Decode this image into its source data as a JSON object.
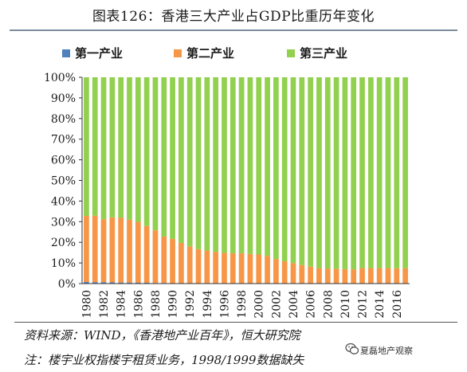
{
  "header": {
    "title": "图表126：香港三大产业占GDP比重历年变化"
  },
  "chart_data": {
    "type": "bar",
    "stacked": true,
    "percent_scale": true,
    "categories": [
      "1980",
      "1981",
      "1982",
      "1983",
      "1984",
      "1985",
      "1986",
      "1987",
      "1988",
      "1989",
      "1990",
      "1991",
      "1992",
      "1993",
      "1994",
      "1995",
      "1996",
      "1997",
      "1998",
      "1999",
      "2000",
      "2001",
      "2002",
      "2003",
      "2004",
      "2005",
      "2006",
      "2007",
      "2008",
      "2009",
      "2010",
      "2011",
      "2012",
      "2013",
      "2014",
      "2015",
      "2016",
      "2017"
    ],
    "x_tick_labels": [
      "1980",
      "1982",
      "1984",
      "1986",
      "1988",
      "1990",
      "1992",
      "1994",
      "1996",
      "1998",
      "2000",
      "2002",
      "2004",
      "2006",
      "2008",
      "2010",
      "2012",
      "2014",
      "2016"
    ],
    "y_tick_labels": [
      "0%",
      "10%",
      "20%",
      "30%",
      "40%",
      "50%",
      "60%",
      "70%",
      "80%",
      "90%",
      "100%"
    ],
    "ylim": [
      0,
      100
    ],
    "series": [
      {
        "name": "第一产业",
        "color": "#4f81bd",
        "values": [
          0.8,
          0.7,
          0.7,
          0.6,
          0.5,
          0.5,
          0.4,
          0.4,
          0.3,
          0.3,
          0.2,
          0.2,
          0.2,
          0.2,
          0.2,
          0.1,
          0.1,
          0.1,
          0.1,
          0.1,
          0.1,
          0.1,
          0.1,
          0.1,
          0.1,
          0.1,
          0.1,
          0.1,
          0.1,
          0.1,
          0.1,
          0.1,
          0.1,
          0.1,
          0.1,
          0.1,
          0.1,
          0.1
        ]
      },
      {
        "name": "第二产业",
        "color": "#f79646",
        "values": [
          32,
          32.2,
          30.5,
          31.5,
          31.5,
          30.5,
          29.5,
          27.5,
          25.5,
          22.5,
          21.5,
          19.5,
          17.8,
          16.5,
          15.8,
          15.2,
          14.8,
          14.6,
          14.6,
          14.3,
          14,
          13.3,
          11.8,
          10.7,
          9.8,
          8.9,
          8.1,
          7.4,
          7.2,
          7.1,
          6.9,
          6.8,
          7.4,
          7.4,
          7.4,
          7.4,
          7.3,
          7.3
        ]
      },
      {
        "name": "第三产业",
        "color": "#92d050",
        "values": [
          67.2,
          67.1,
          68.8,
          67.9,
          68,
          69,
          70.1,
          72.1,
          74.2,
          77.2,
          78.3,
          80.3,
          82,
          83.3,
          84,
          84.7,
          85.1,
          85.3,
          85.3,
          85.6,
          85.9,
          86.6,
          88.1,
          89.2,
          90.1,
          91,
          91.8,
          92.5,
          92.7,
          92.8,
          93,
          93.1,
          92.5,
          92.5,
          92.5,
          92.5,
          92.6,
          92.6
        ]
      }
    ],
    "legend_position": "top",
    "grid": false
  },
  "notes": {
    "source": "资料来源：WIND，《香港地产业百年》，恒大研究院",
    "footnote": "注：楼宇业权指楼宇租赁业务，1998/1999数据缺失"
  },
  "watermark": {
    "text": "夏磊地产观察",
    "icon": "wechat-icon"
  }
}
